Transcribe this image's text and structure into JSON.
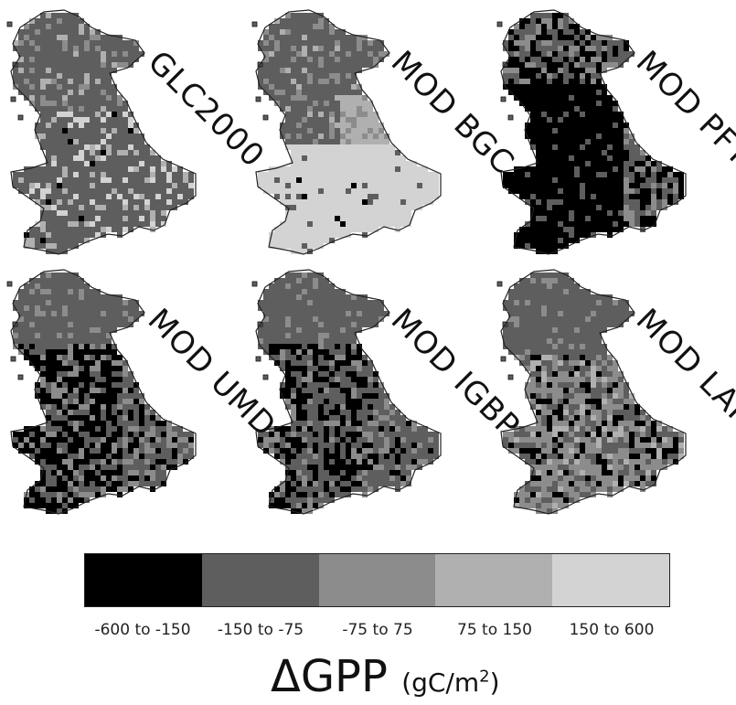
{
  "panels": [
    {
      "title": "GLC2000",
      "scheme": "glc"
    },
    {
      "title": "MOD BGC",
      "scheme": "bgc"
    },
    {
      "title": "MOD PFT",
      "scheme": "pft"
    },
    {
      "title": "MOD UMD",
      "scheme": "umd"
    },
    {
      "title": "MOD IGBP",
      "scheme": "igbp"
    },
    {
      "title": "MOD LAI",
      "scheme": "lai"
    }
  ],
  "legend": {
    "classes": [
      {
        "label": "-600 to -150",
        "color": "#000000"
      },
      {
        "label": "-150 to -75",
        "color": "#5e5e5e"
      },
      {
        "label": "-75 to 75",
        "color": "#8c8c8c"
      },
      {
        "label": "75 to 150",
        "color": "#b0b0b0"
      },
      {
        "label": "150 to 600",
        "color": "#d3d3d3"
      }
    ]
  },
  "axis_title": {
    "quantity": "ΔGPP",
    "unit_prefix": "(gC/m",
    "unit_exp": "2",
    "unit_suffix": ")"
  }
}
